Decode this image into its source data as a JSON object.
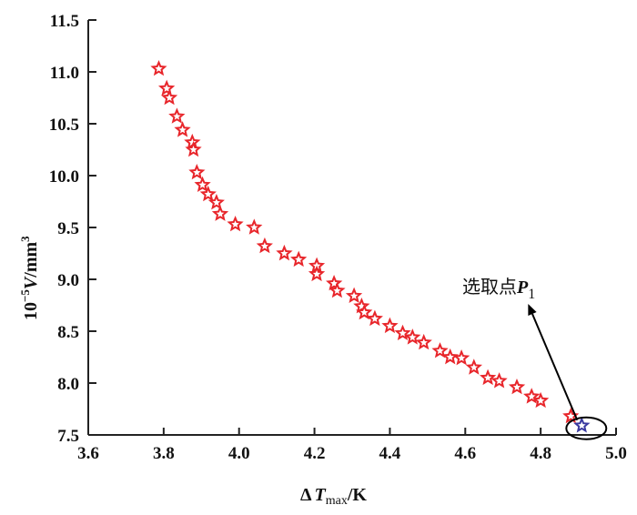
{
  "chart_data": {
    "type": "scatter",
    "title": "",
    "xlabel": {
      "prefix": "Δ",
      "var": "T",
      "sub": "max",
      "unit": "/K"
    },
    "ylabel": {
      "prefix": "10",
      "sup": "−5",
      "var": "V",
      "unit": "/mm",
      "unit_sup": "3"
    },
    "xlim": [
      3.6,
      5.0
    ],
    "ylim": [
      7.5,
      11.5
    ],
    "xticks": [
      "3.6",
      "3.8",
      "4.0",
      "4.2",
      "4.4",
      "4.6",
      "4.8",
      "5.0"
    ],
    "yticks": [
      "7.5",
      "8.0",
      "8.5",
      "9.0",
      "9.5",
      "10.0",
      "10.5",
      "11.0",
      "11.5"
    ],
    "grid": false,
    "marker": "star",
    "colors": {
      "points": "#e8262b",
      "selected": "#3a3aa0"
    },
    "points": [
      [
        3.787,
        11.03
      ],
      [
        3.808,
        10.84
      ],
      [
        3.815,
        10.75
      ],
      [
        3.835,
        10.57
      ],
      [
        3.85,
        10.44
      ],
      [
        3.876,
        10.32
      ],
      [
        3.879,
        10.25
      ],
      [
        3.888,
        10.03
      ],
      [
        3.903,
        9.91
      ],
      [
        3.918,
        9.82
      ],
      [
        3.94,
        9.74
      ],
      [
        3.95,
        9.63
      ],
      [
        3.99,
        9.53
      ],
      [
        4.04,
        9.5
      ],
      [
        4.068,
        9.32
      ],
      [
        4.12,
        9.25
      ],
      [
        4.158,
        9.19
      ],
      [
        4.206,
        9.13
      ],
      [
        4.206,
        9.05
      ],
      [
        4.252,
        8.96
      ],
      [
        4.26,
        8.89
      ],
      [
        4.305,
        8.84
      ],
      [
        4.325,
        8.74
      ],
      [
        4.332,
        8.68
      ],
      [
        4.36,
        8.62
      ],
      [
        4.4,
        8.55
      ],
      [
        4.434,
        8.48
      ],
      [
        4.46,
        8.44
      ],
      [
        4.49,
        8.39
      ],
      [
        4.533,
        8.31
      ],
      [
        4.56,
        8.25
      ],
      [
        4.59,
        8.24
      ],
      [
        4.623,
        8.15
      ],
      [
        4.66,
        8.05
      ],
      [
        4.69,
        8.02
      ],
      [
        4.737,
        7.96
      ],
      [
        4.776,
        7.87
      ],
      [
        4.8,
        7.83
      ],
      [
        4.88,
        7.68
      ]
    ],
    "selected_point": {
      "x": 4.909,
      "y": 7.59,
      "label": "选取点",
      "label_var": "P",
      "label_sub": "1"
    }
  }
}
